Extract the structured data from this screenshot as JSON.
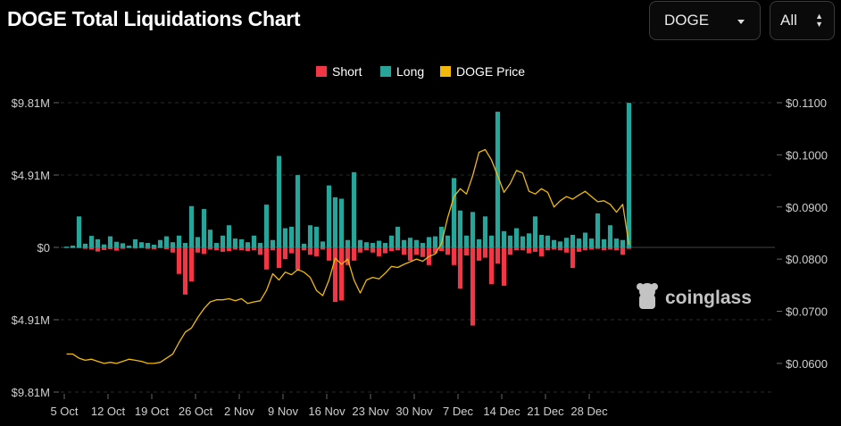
{
  "header": {
    "title": "DOGE Total Liquidations Chart"
  },
  "controls": {
    "coin": {
      "value": "DOGE",
      "icon": "chevron-down-icon"
    },
    "range": {
      "value": "All",
      "icon": "up-down-arrows-icon"
    }
  },
  "watermark": {
    "text": "coinglass",
    "icon": "coinglass-logo-icon"
  },
  "chart_data": {
    "type": "bar",
    "title": "DOGE Total Liquidations Chart",
    "legend": {
      "placement": "top-center",
      "items": [
        "Short",
        "Long",
        "DOGE Price"
      ]
    },
    "colors": {
      "short": "#f23645",
      "long": "#26a69a",
      "price": "#f0b90b",
      "grid": "#2a2a2a"
    },
    "grid": true,
    "y_left": {
      "ticks": [
        "$9.81M",
        "$4.91M",
        "$0",
        "$4.91M",
        "$9.81M"
      ],
      "range": [
        -9.81,
        9.81
      ],
      "unit": "M USD"
    },
    "y_right": {
      "ticks": [
        "$0.1100",
        "$0.1000",
        "$0.0900",
        "$0.0800",
        "$0.0700",
        "$0.0600"
      ],
      "range": [
        0.0545,
        0.11
      ]
    },
    "x_ticks": [
      "5 Oct",
      "12 Oct",
      "19 Oct",
      "26 Oct",
      "2 Nov",
      "9 Nov",
      "16 Nov",
      "23 Nov",
      "30 Nov",
      "7 Dec",
      "14 Dec",
      "21 Dec",
      "28 Dec"
    ],
    "start_date": "2022-10-05",
    "series": [
      {
        "name": "Long",
        "values": [
          0.05,
          0.12,
          2.1,
          0.25,
          0.78,
          0.55,
          0.2,
          0.75,
          0.38,
          0.28,
          0.12,
          0.55,
          0.35,
          0.3,
          0.18,
          0.5,
          0.75,
          0.35,
          0.8,
          0.3,
          2.8,
          0.7,
          2.6,
          1.2,
          0.3,
          0.8,
          1.5,
          0.6,
          0.55,
          0.35,
          0.8,
          0.3,
          2.9,
          0.5,
          6.2,
          1.3,
          1.4,
          4.9,
          0.25,
          1.5,
          1.4,
          0.4,
          4.2,
          3.4,
          3.3,
          0.5,
          5.1,
          0.5,
          0.35,
          0.3,
          0.45,
          0.3,
          0.8,
          1.4,
          0.5,
          0.65,
          0.5,
          0.3,
          0.7,
          0.75,
          1.4,
          0.8,
          4.7,
          2.5,
          0.8,
          2.4,
          0.55,
          2.1,
          0.8,
          9.2,
          1.1,
          0.8,
          1.3,
          0.75,
          0.95,
          2.1,
          0.85,
          0.8,
          0.5,
          0.4,
          0.65,
          0.85,
          0.6,
          1.0,
          0.6,
          2.3,
          0.55,
          1.5,
          0.6,
          0.5,
          9.8
        ]
      },
      {
        "name": "Short",
        "values": [
          0.05,
          0.05,
          0.05,
          0.1,
          0.15,
          0.28,
          0.18,
          0.12,
          0.22,
          0.1,
          0.05,
          0.08,
          0.05,
          0.1,
          0.12,
          0.05,
          0.12,
          0.35,
          1.8,
          3.2,
          2.3,
          0.35,
          0.45,
          0.15,
          0.2,
          0.3,
          0.25,
          0.15,
          0.2,
          0.25,
          0.2,
          0.5,
          1.5,
          0.2,
          1.4,
          0.8,
          0.4,
          1.5,
          0.2,
          0.5,
          0.6,
          0.15,
          0.9,
          3.7,
          3.6,
          1.2,
          0.9,
          0.35,
          0.2,
          0.35,
          0.6,
          0.4,
          0.25,
          0.2,
          0.5,
          0.9,
          0.5,
          0.65,
          1.2,
          0.4,
          0.25,
          0.5,
          1.2,
          2.8,
          0.55,
          5.3,
          0.9,
          0.7,
          2.5,
          1.1,
          2.6,
          0.5,
          0.2,
          0.2,
          0.4,
          0.3,
          0.6,
          0.2,
          0.15,
          0.2,
          0.35,
          1.4,
          0.3,
          0.2,
          0.15,
          0.1,
          0.2,
          0.15,
          0.2,
          0.5,
          0.1
        ]
      },
      {
        "name": "DOGE Price",
        "values": [
          0.0618,
          0.0618,
          0.061,
          0.0606,
          0.0608,
          0.0604,
          0.06,
          0.0602,
          0.06,
          0.0604,
          0.0608,
          0.0606,
          0.0604,
          0.06,
          0.06,
          0.0602,
          0.061,
          0.0618,
          0.064,
          0.066,
          0.0668,
          0.0688,
          0.0705,
          0.0718,
          0.0722,
          0.0722,
          0.0724,
          0.072,
          0.0724,
          0.0715,
          0.0718,
          0.072,
          0.074,
          0.0772,
          0.076,
          0.0775,
          0.077,
          0.078,
          0.0775,
          0.0765,
          0.074,
          0.073,
          0.076,
          0.0802,
          0.079,
          0.08,
          0.076,
          0.0735,
          0.076,
          0.0765,
          0.0762,
          0.0773,
          0.0786,
          0.0784,
          0.079,
          0.0795,
          0.08,
          0.0796,
          0.0805,
          0.081,
          0.083,
          0.088,
          0.092,
          0.0935,
          0.0925,
          0.096,
          0.1005,
          0.101,
          0.099,
          0.096,
          0.0928,
          0.0945,
          0.097,
          0.0965,
          0.093,
          0.0925,
          0.0935,
          0.0928,
          0.09,
          0.0912,
          0.092,
          0.0915,
          0.0923,
          0.093,
          0.092,
          0.091,
          0.0912,
          0.0905,
          0.089,
          0.0905,
          0.0828
        ]
      }
    ]
  }
}
